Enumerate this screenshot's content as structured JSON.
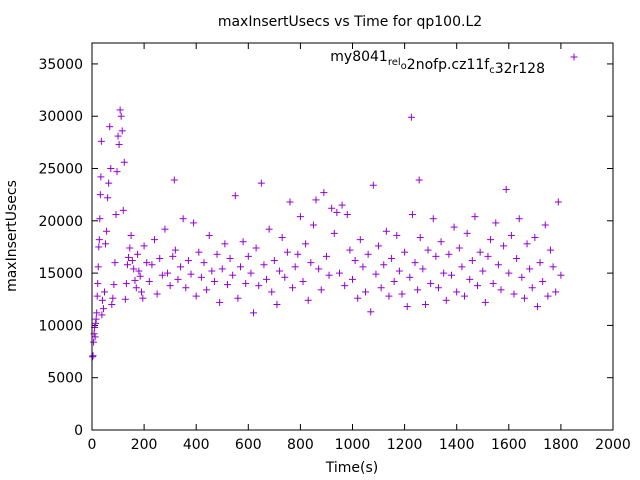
{
  "chart_data": {
    "type": "scatter",
    "title": "maxInsertUsecs vs Time for qp100.L2",
    "xlabel": "Time(s)",
    "ylabel": "maxInsertUsecs",
    "xlim": [
      0,
      2000
    ],
    "ylim": [
      0,
      37000
    ],
    "x_ticks": [
      0,
      200,
      400,
      600,
      800,
      1000,
      1200,
      1400,
      1600,
      1800,
      2000
    ],
    "y_ticks": [
      0,
      5000,
      10000,
      15000,
      20000,
      25000,
      30000,
      35000
    ],
    "legend_position": "top-right",
    "marker": "+",
    "color": "#9400d3",
    "series": [
      {
        "name_parts": [
          {
            "t": "my8041",
            "sub": false
          },
          {
            "t": "rel",
            "sub": true
          },
          {
            "t": "o",
            "sub": true
          },
          {
            "t": "2nofp.cz11f",
            "sub": false
          },
          {
            "t": "c",
            "sub": true
          },
          {
            "t": "32r128",
            "sub": false
          }
        ],
        "name": "my8041_rel_o2nofp.cz11f_c32r128",
        "points": [
          [
            2,
            7000
          ],
          [
            4,
            7100
          ],
          [
            6,
            8400
          ],
          [
            8,
            9200
          ],
          [
            10,
            9800
          ],
          [
            12,
            8900
          ],
          [
            14,
            10200
          ],
          [
            16,
            10600
          ],
          [
            18,
            11200
          ],
          [
            20,
            12800
          ],
          [
            22,
            14000
          ],
          [
            24,
            15600
          ],
          [
            26,
            17500
          ],
          [
            28,
            18200
          ],
          [
            30,
            20200
          ],
          [
            32,
            22500
          ],
          [
            34,
            24200
          ],
          [
            36,
            27600
          ],
          [
            38,
            11000
          ],
          [
            40,
            12400
          ],
          [
            44,
            11600
          ],
          [
            48,
            13200
          ],
          [
            52,
            17800
          ],
          [
            56,
            19000
          ],
          [
            60,
            22200
          ],
          [
            64,
            23600
          ],
          [
            68,
            29000
          ],
          [
            72,
            25000
          ],
          [
            76,
            12000
          ],
          [
            80,
            12600
          ],
          [
            84,
            13900
          ],
          [
            88,
            16000
          ],
          [
            92,
            20600
          ],
          [
            96,
            24700
          ],
          [
            100,
            28100
          ],
          [
            104,
            27300
          ],
          [
            108,
            30600
          ],
          [
            112,
            30000
          ],
          [
            116,
            28600
          ],
          [
            120,
            21000
          ],
          [
            124,
            25600
          ],
          [
            128,
            12500
          ],
          [
            132,
            14000
          ],
          [
            136,
            15800
          ],
          [
            140,
            16500
          ],
          [
            145,
            17400
          ],
          [
            150,
            18600
          ],
          [
            155,
            16200
          ],
          [
            160,
            15400
          ],
          [
            165,
            14300
          ],
          [
            170,
            13600
          ],
          [
            175,
            16800
          ],
          [
            180,
            15200
          ],
          [
            185,
            14700
          ],
          [
            190,
            13200
          ],
          [
            195,
            12600
          ],
          [
            200,
            17600
          ],
          [
            210,
            16000
          ],
          [
            220,
            14200
          ],
          [
            230,
            15800
          ],
          [
            240,
            18200
          ],
          [
            250,
            13000
          ],
          [
            260,
            16400
          ],
          [
            270,
            14800
          ],
          [
            280,
            19200
          ],
          [
            290,
            15000
          ],
          [
            300,
            13800
          ],
          [
            310,
            16600
          ],
          [
            316,
            23900
          ],
          [
            320,
            17200
          ],
          [
            330,
            14400
          ],
          [
            340,
            15600
          ],
          [
            350,
            20200
          ],
          [
            360,
            13600
          ],
          [
            370,
            16200
          ],
          [
            380,
            14900
          ],
          [
            390,
            19800
          ],
          [
            400,
            12800
          ],
          [
            410,
            17000
          ],
          [
            420,
            14600
          ],
          [
            430,
            16000
          ],
          [
            440,
            13400
          ],
          [
            450,
            18600
          ],
          [
            460,
            15200
          ],
          [
            470,
            14200
          ],
          [
            480,
            16800
          ],
          [
            490,
            12200
          ],
          [
            500,
            15400
          ],
          [
            510,
            17800
          ],
          [
            520,
            13900
          ],
          [
            530,
            16400
          ],
          [
            540,
            14800
          ],
          [
            550,
            22400
          ],
          [
            560,
            12600
          ],
          [
            570,
            15600
          ],
          [
            580,
            18000
          ],
          [
            590,
            14000
          ],
          [
            600,
            16600
          ],
          [
            610,
            15000
          ],
          [
            620,
            11200
          ],
          [
            630,
            17400
          ],
          [
            640,
            13800
          ],
          [
            650,
            23600
          ],
          [
            660,
            15800
          ],
          [
            670,
            14400
          ],
          [
            680,
            19200
          ],
          [
            690,
            13200
          ],
          [
            700,
            16200
          ],
          [
            710,
            12000
          ],
          [
            720,
            15200
          ],
          [
            730,
            18400
          ],
          [
            740,
            14600
          ],
          [
            750,
            17000
          ],
          [
            760,
            21800
          ],
          [
            770,
            13600
          ],
          [
            780,
            15600
          ],
          [
            790,
            16800
          ],
          [
            800,
            20400
          ],
          [
            810,
            14200
          ],
          [
            820,
            17800
          ],
          [
            830,
            12400
          ],
          [
            840,
            16000
          ],
          [
            850,
            19600
          ],
          [
            860,
            22000
          ],
          [
            870,
            15400
          ],
          [
            880,
            13400
          ],
          [
            890,
            22700
          ],
          [
            900,
            16600
          ],
          [
            910,
            14800
          ],
          [
            920,
            21200
          ],
          [
            930,
            18800
          ],
          [
            940,
            20800
          ],
          [
            950,
            15000
          ],
          [
            960,
            21500
          ],
          [
            970,
            13800
          ],
          [
            980,
            20600
          ],
          [
            990,
            17200
          ],
          [
            1000,
            14400
          ],
          [
            1010,
            16200
          ],
          [
            1020,
            12600
          ],
          [
            1030,
            18200
          ],
          [
            1040,
            15600
          ],
          [
            1050,
            13200
          ],
          [
            1060,
            16800
          ],
          [
            1070,
            11300
          ],
          [
            1080,
            23400
          ],
          [
            1090,
            14900
          ],
          [
            1100,
            17600
          ],
          [
            1110,
            13600
          ],
          [
            1120,
            15800
          ],
          [
            1130,
            19000
          ],
          [
            1140,
            12800
          ],
          [
            1150,
            16400
          ],
          [
            1160,
            14200
          ],
          [
            1170,
            18600
          ],
          [
            1180,
            15200
          ],
          [
            1190,
            13000
          ],
          [
            1200,
            17000
          ],
          [
            1210,
            11800
          ],
          [
            1220,
            14600
          ],
          [
            1226,
            29900
          ],
          [
            1230,
            20600
          ],
          [
            1240,
            16000
          ],
          [
            1250,
            13400
          ],
          [
            1256,
            23900
          ],
          [
            1260,
            18400
          ],
          [
            1270,
            15400
          ],
          [
            1280,
            12000
          ],
          [
            1290,
            17200
          ],
          [
            1300,
            14000
          ],
          [
            1310,
            20200
          ],
          [
            1320,
            16600
          ],
          [
            1330,
            13600
          ],
          [
            1340,
            18000
          ],
          [
            1350,
            15000
          ],
          [
            1360,
            12400
          ],
          [
            1370,
            16800
          ],
          [
            1380,
            14800
          ],
          [
            1390,
            19400
          ],
          [
            1400,
            13200
          ],
          [
            1410,
            17400
          ],
          [
            1420,
            15600
          ],
          [
            1430,
            12800
          ],
          [
            1440,
            18800
          ],
          [
            1450,
            14400
          ],
          [
            1460,
            16200
          ],
          [
            1470,
            20400
          ],
          [
            1480,
            13800
          ],
          [
            1490,
            17000
          ],
          [
            1500,
            15200
          ],
          [
            1510,
            12200
          ],
          [
            1520,
            16600
          ],
          [
            1530,
            18200
          ],
          [
            1540,
            14000
          ],
          [
            1550,
            19800
          ],
          [
            1560,
            15800
          ],
          [
            1570,
            13400
          ],
          [
            1580,
            17600
          ],
          [
            1590,
            23000
          ],
          [
            1600,
            15000
          ],
          [
            1610,
            18600
          ],
          [
            1620,
            13000
          ],
          [
            1630,
            16400
          ],
          [
            1640,
            20200
          ],
          [
            1650,
            14600
          ],
          [
            1660,
            12600
          ],
          [
            1670,
            17800
          ],
          [
            1680,
            15400
          ],
          [
            1690,
            13600
          ],
          [
            1700,
            18400
          ],
          [
            1710,
            11800
          ],
          [
            1720,
            16000
          ],
          [
            1730,
            14200
          ],
          [
            1740,
            19600
          ],
          [
            1750,
            12800
          ],
          [
            1760,
            17200
          ],
          [
            1770,
            15600
          ],
          [
            1780,
            13200
          ],
          [
            1790,
            21800
          ],
          [
            1800,
            14800
          ]
        ]
      }
    ]
  }
}
